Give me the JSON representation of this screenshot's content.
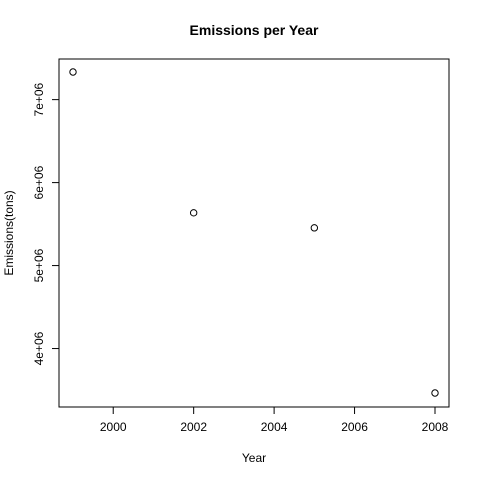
{
  "chart_data": {
    "type": "scatter",
    "title": "Emissions per Year",
    "xlabel": "Year",
    "ylabel": "Emissions(tons)",
    "x": [
      1999,
      2002,
      2005,
      2008
    ],
    "y": [
      7332967,
      5635780,
      5454703,
      3464206
    ],
    "xlim": [
      1999,
      2008
    ],
    "ylim": [
      3464206,
      7332967
    ],
    "xticks": [
      2000,
      2002,
      2004,
      2006,
      2008
    ],
    "xtick_labels": [
      "2000",
      "2002",
      "2004",
      "2006",
      "2008"
    ],
    "yticks": [
      4000000,
      5000000,
      6000000,
      7000000
    ],
    "ytick_labels": [
      "4e+06",
      "5e+06",
      "6e+06",
      "7e+06"
    ],
    "marker": "open-circle",
    "grid": false,
    "legend": "none"
  }
}
